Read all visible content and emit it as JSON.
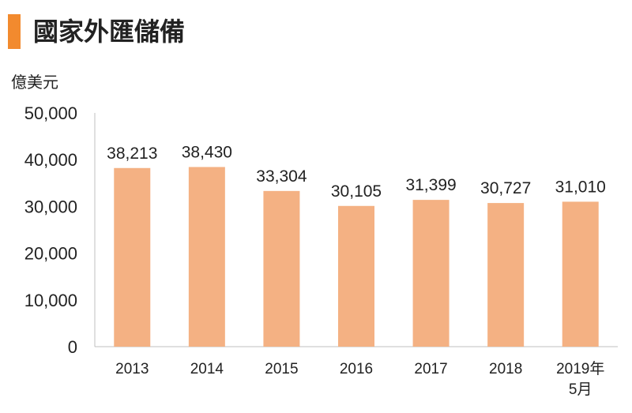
{
  "chart_data": {
    "type": "bar",
    "title": "國家外匯儲備",
    "ylabel": "億美元",
    "xlabel": "",
    "categories": [
      "2013",
      "2014",
      "2015",
      "2016",
      "2017",
      "2018",
      "2019年\n5月"
    ],
    "values": [
      38213,
      38430,
      33304,
      30105,
      31399,
      30727,
      31010
    ],
    "data_labels": [
      "38,213",
      "38,430",
      "33,304",
      "30,105",
      "31,399",
      "30,727",
      "31,010"
    ],
    "ylim": [
      0,
      50000
    ],
    "yticks": [
      0,
      10000,
      20000,
      30000,
      40000,
      50000
    ],
    "ytick_labels": [
      "0",
      "10,000",
      "20,000",
      "30,000",
      "40,000",
      "50,000"
    ],
    "grid": false,
    "legend": "none",
    "colors": {
      "bar": "#f4b183",
      "accent": "#f28a2e",
      "axis": "#bfbfbf"
    }
  }
}
